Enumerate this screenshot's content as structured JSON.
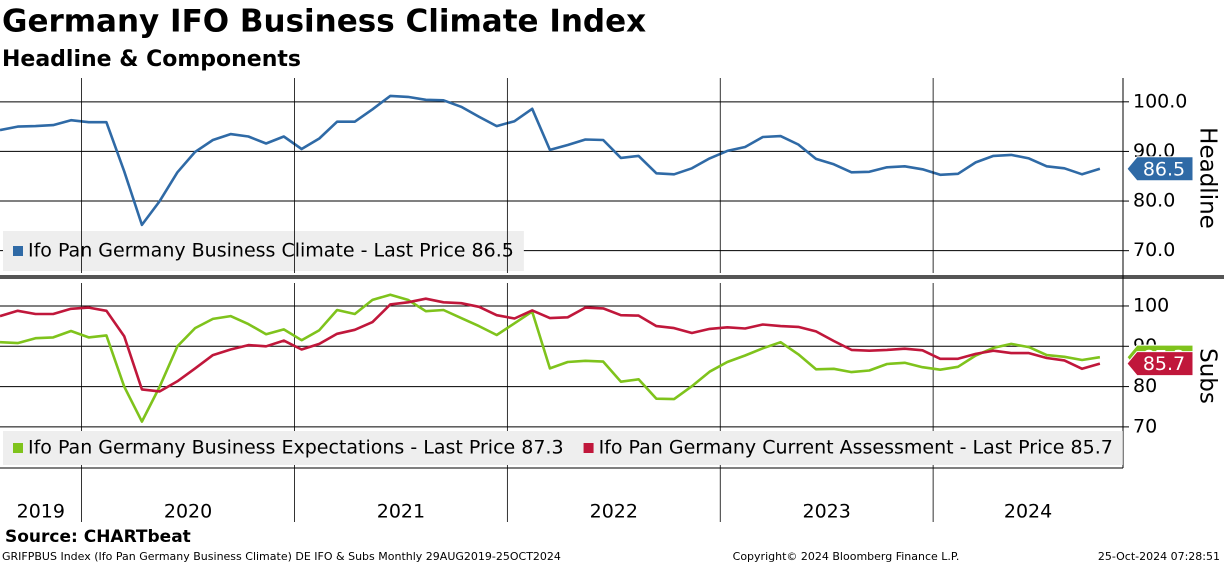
{
  "title": "Germany IFO Business Climate Index",
  "subtitle": "Headline & Components",
  "source": "Source: CHARTbeat",
  "footer": {
    "left": "GRIFPBUS Index (Ifo Pan Germany Business Climate) DE IFO & Subs  Monthly 29AUG2019-25OCT2024",
    "center": "Copyright© 2024 Bloomberg Finance L.P.",
    "right": "25-Oct-2024 07:28:51"
  },
  "chart_data": [
    {
      "type": "line",
      "axis_title": "Headline",
      "grid": true,
      "ylim": [
        65.5,
        104.8
      ],
      "yticks": [
        {
          "value": 100,
          "label": "100.0"
        },
        {
          "value": 90,
          "label": "90.0"
        },
        {
          "value": 80,
          "label": "80.0"
        },
        {
          "value": 70,
          "label": "70.0"
        }
      ],
      "categories": [
        null,
        null,
        null,
        null,
        null,
        null,
        null,
        null,
        null,
        null,
        null,
        null,
        null,
        null,
        null,
        null,
        null,
        null,
        null,
        null,
        null,
        null,
        null,
        null,
        null,
        null,
        null,
        null,
        null,
        null,
        null,
        null,
        null,
        null,
        null,
        null,
        null,
        null,
        null,
        null,
        null,
        null,
        null,
        null,
        null,
        null,
        null,
        null,
        null,
        null,
        null,
        null,
        null,
        null,
        null,
        null,
        null,
        null,
        null,
        null,
        null,
        null,
        null
      ],
      "series": [
        {
          "name": "Ifo Pan Germany Business Climate - Last Price 86.5",
          "color": "#2f6aa6",
          "values": [
            94.3,
            95.0,
            95.1,
            95.3,
            96.3,
            95.9,
            95.9,
            86.0,
            75.2,
            80.0,
            85.8,
            89.9,
            92.3,
            93.5,
            93.0,
            91.6,
            93.0,
            90.5,
            92.6,
            96.0,
            96.0,
            98.5,
            101.2,
            101.0,
            100.4,
            100.3,
            99.0,
            97.0,
            95.1,
            96.1,
            98.6,
            90.3,
            91.3,
            92.4,
            92.3,
            88.7,
            89.1,
            85.6,
            85.4,
            86.6,
            88.6,
            90.1,
            90.9,
            92.9,
            93.1,
            91.4,
            88.5,
            87.4,
            85.8,
            85.9,
            86.8,
            87.0,
            86.4,
            85.3,
            85.5,
            87.8,
            89.1,
            89.3,
            88.6,
            87.0,
            86.6,
            85.4,
            86.5
          ]
        }
      ]
    },
    {
      "type": "line",
      "axis_title": "Subs",
      "grid": true,
      "ylim": [
        59.8,
        105.7
      ],
      "yticks": [
        100,
        90,
        80,
        70
      ],
      "categories": [
        null,
        null,
        null,
        null,
        null,
        null,
        null,
        null,
        null,
        null,
        null,
        null,
        null,
        null,
        null,
        null,
        null,
        null,
        null,
        null,
        null,
        null,
        null,
        null,
        null,
        null,
        null,
        null,
        null,
        null,
        null,
        null,
        null,
        null,
        null,
        null,
        null,
        null,
        null,
        null,
        null,
        null,
        null,
        null,
        null,
        null,
        null,
        null,
        null,
        null,
        null,
        null,
        null,
        null,
        null,
        null,
        null,
        null,
        null,
        null,
        null,
        null,
        null
      ],
      "xticks": [
        {
          "value": 0,
          "label": "2019"
        },
        {
          "value": 5,
          "label": "2020"
        },
        {
          "value": 17,
          "label": "2021"
        },
        {
          "value": 29,
          "label": "2022"
        },
        {
          "value": 41,
          "label": "2023"
        },
        {
          "value": 53,
          "label": "2024"
        }
      ],
      "series": [
        {
          "name": "Ifo Pan Germany Business Expectations - Last Price 87.3",
          "color": "#7fc31c",
          "values": [
            91.0,
            90.8,
            92.0,
            92.2,
            93.8,
            92.2,
            92.7,
            80.0,
            71.3,
            80.0,
            90.0,
            94.5,
            96.8,
            97.5,
            95.5,
            93.0,
            94.2,
            91.5,
            94.0,
            99.0,
            98.0,
            101.5,
            102.8,
            101.5,
            98.7,
            99.0,
            97.0,
            95.0,
            92.8,
            95.7,
            98.6,
            84.5,
            86.1,
            86.4,
            86.2,
            81.2,
            81.8,
            77.0,
            76.9,
            80.1,
            83.7,
            86.1,
            87.7,
            89.5,
            91.0,
            88.0,
            84.3,
            84.4,
            83.6,
            84.0,
            85.6,
            85.9,
            84.8,
            84.2,
            84.9,
            87.7,
            89.6,
            90.6,
            89.8,
            87.8,
            87.4,
            86.6,
            87.3
          ]
        },
        {
          "name": "Ifo Pan Germany Current Assessment - Last Price 85.7",
          "color": "#c0173b",
          "values": [
            97.5,
            98.8,
            98.0,
            98.0,
            99.3,
            99.6,
            98.8,
            92.5,
            79.3,
            78.8,
            81.3,
            84.5,
            87.8,
            89.2,
            90.3,
            90.0,
            91.4,
            89.2,
            90.6,
            93.1,
            94.1,
            96.0,
            100.4,
            100.9,
            101.8,
            100.9,
            100.7,
            99.8,
            97.7,
            96.9,
            98.9,
            97.0,
            97.2,
            99.6,
            99.4,
            97.7,
            97.6,
            95.0,
            94.5,
            93.3,
            94.3,
            94.7,
            94.4,
            95.4,
            95.0,
            94.8,
            93.7,
            91.3,
            89.1,
            88.9,
            89.1,
            89.4,
            89.0,
            86.9,
            86.9,
            88.1,
            88.9,
            88.3,
            88.3,
            87.1,
            86.5,
            84.4,
            85.7
          ]
        }
      ]
    }
  ]
}
